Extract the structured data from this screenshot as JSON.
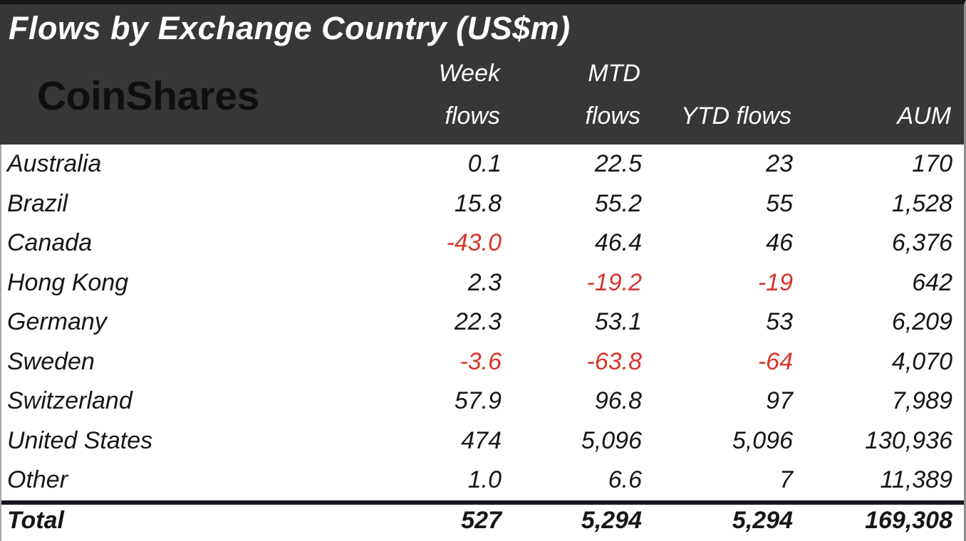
{
  "chart_data": {
    "type": "table",
    "title": "Flows by Exchange Country (US$m)",
    "brand": "CoinShares",
    "column_headers": {
      "week": [
        "Week",
        "flows"
      ],
      "mtd": [
        "MTD",
        "flows"
      ],
      "ytd": "YTD flows",
      "aum": "AUM"
    },
    "rows": [
      {
        "country": "Australia",
        "week": "0.1",
        "mtd": "22.5",
        "ytd": "23",
        "aum": "170"
      },
      {
        "country": "Brazil",
        "week": "15.8",
        "mtd": "55.2",
        "ytd": "55",
        "aum": "1,528"
      },
      {
        "country": "Canada",
        "week": "-43.0",
        "mtd": "46.4",
        "ytd": "46",
        "aum": "6,376"
      },
      {
        "country": "Hong Kong",
        "week": "2.3",
        "mtd": "-19.2",
        "ytd": "-19",
        "aum": "642"
      },
      {
        "country": "Germany",
        "week": "22.3",
        "mtd": "53.1",
        "ytd": "53",
        "aum": "6,209"
      },
      {
        "country": "Sweden",
        "week": "-3.6",
        "mtd": "-63.8",
        "ytd": "-64",
        "aum": "4,070"
      },
      {
        "country": "Switzerland",
        "week": "57.9",
        "mtd": "96.8",
        "ytd": "97",
        "aum": "7,989"
      },
      {
        "country": "United States",
        "week": "474",
        "mtd": "5,096",
        "ytd": "5,096",
        "aum": "130,936"
      },
      {
        "country": "Other",
        "week": "1.0",
        "mtd": "6.6",
        "ytd": "7",
        "aum": "11,389"
      }
    ],
    "total": {
      "country": "Total",
      "week": "527",
      "mtd": "5,294",
      "ytd": "5,294",
      "aum": "169,308"
    },
    "colors": {
      "header_bg": "#373737",
      "header_text": "#ffffff",
      "body_text": "#161616",
      "negative": "#d8342c",
      "logo": "#0f0f0f"
    },
    "layout": {
      "grid": "off",
      "header_position": "top",
      "value_alignment": "right"
    }
  }
}
